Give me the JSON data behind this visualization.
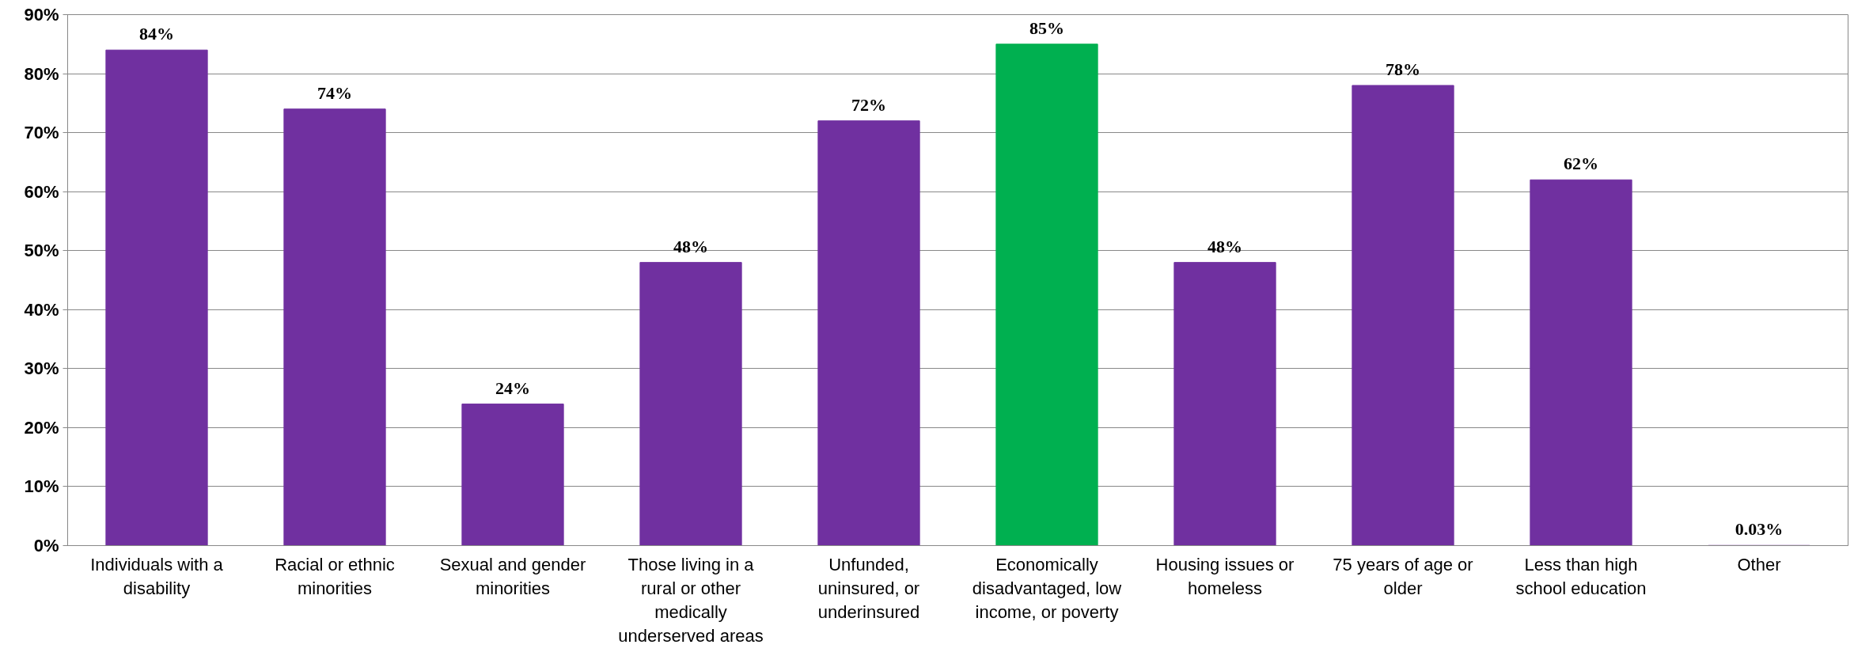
{
  "chart_data": {
    "type": "bar",
    "categories": [
      "Individuals with a disability",
      "Racial or ethnic minorities",
      "Sexual and gender minorities",
      "Those living in a rural or other medically underserved areas",
      "Unfunded, uninsured, or underinsured",
      "Economically disadvantaged, low income, or poverty",
      "Housing issues or homeless",
      "75 years of age or older",
      "Less than high school education",
      "Other"
    ],
    "values": [
      84,
      74,
      24,
      48,
      72,
      85,
      48,
      78,
      62,
      0.03
    ],
    "colors": [
      "#7030a0",
      "#7030a0",
      "#7030a0",
      "#7030a0",
      "#7030a0",
      "#00b050",
      "#7030a0",
      "#7030a0",
      "#7030a0",
      "#7030a0"
    ],
    "value_labels": [
      "84%",
      "74%",
      "24%",
      "48%",
      "72%",
      "85%",
      "48%",
      "78%",
      "62%",
      "0.03%"
    ],
    "ylim": [
      0,
      90
    ],
    "yticks": [
      {
        "value": 0,
        "label": "0%"
      },
      {
        "value": 10,
        "label": "10%"
      },
      {
        "value": 20,
        "label": "20%"
      },
      {
        "value": 30,
        "label": "30%"
      },
      {
        "value": 40,
        "label": "40%"
      },
      {
        "value": 50,
        "label": "50%"
      },
      {
        "value": 60,
        "label": "60%"
      },
      {
        "value": 70,
        "label": "70%"
      },
      {
        "value": 80,
        "label": "80%"
      },
      {
        "value": 90,
        "label": "90%"
      }
    ],
    "grid": "y"
  }
}
